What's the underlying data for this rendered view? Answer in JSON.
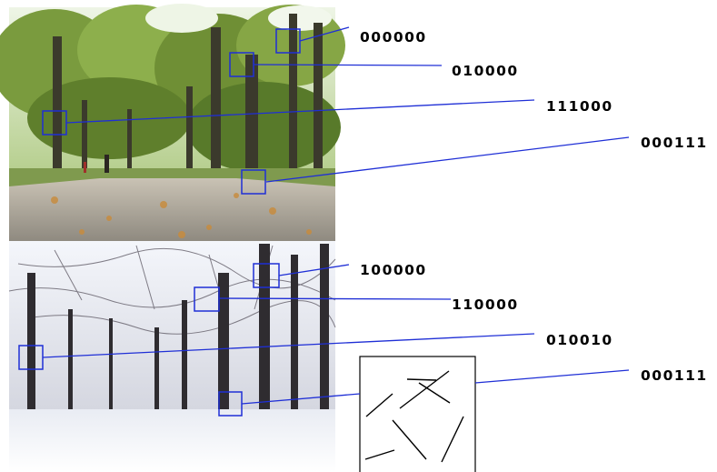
{
  "palette": {
    "annotation_line": "#1f2fd6",
    "label_text": "#000000",
    "background": "#ffffff",
    "summer_sky": "#e6efe0",
    "summer_foliage": "#6f8f3a",
    "summer_path": "#a7a39a",
    "winter_sky": "#f2f4f8",
    "winter_trees": "#2f2c30",
    "winter_snow": "#f7f8fb"
  },
  "panels": [
    {
      "name": "summer-park-photo",
      "season": "summer"
    },
    {
      "name": "winter-park-photo",
      "season": "winter"
    }
  ],
  "annotations": {
    "summer": [
      {
        "code": "000000"
      },
      {
        "code": "010000"
      },
      {
        "code": "111000"
      },
      {
        "code": "000111"
      }
    ],
    "winter": [
      {
        "code": "100000"
      },
      {
        "code": "110000"
      },
      {
        "code": "010010"
      },
      {
        "code": "000111"
      }
    ]
  },
  "inset": {
    "description_icon": "line-segments-icon"
  }
}
